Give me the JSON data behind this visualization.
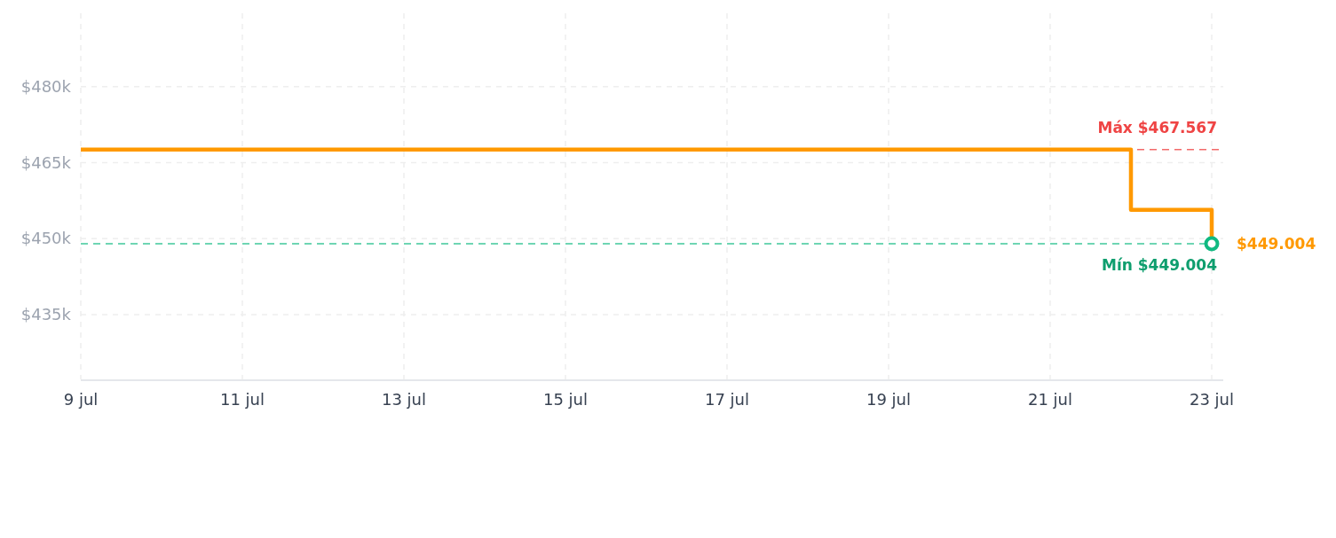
{
  "chart_data": {
    "type": "step",
    "x": [
      "--07-09",
      "--07-22",
      "--07-23"
    ],
    "series": [
      {
        "color": "#ff9900",
        "values": [
          467567,
          455700,
          449004
        ],
        "value_labels": [
          null,
          null,
          "$449.004"
        ]
      },
      {
        "type": "scatter",
        "x": [
          "--07-23"
        ],
        "values": [
          449004
        ],
        "color": "#10b981",
        "marker": "circle"
      }
    ],
    "xlim": [
      "--07-09",
      "--07-23"
    ],
    "xticks": [
      {
        "value": "--07-09",
        "label": "9 jul"
      },
      {
        "value": "--07-11",
        "label": "11 jul"
      },
      {
        "value": "--07-13",
        "label": "13 jul"
      },
      {
        "value": "--07-15",
        "label": "15 jul"
      },
      {
        "value": "--07-17",
        "label": "17 jul"
      },
      {
        "value": "--07-19",
        "label": "19 jul"
      },
      {
        "value": "--07-21",
        "label": "21 jul"
      },
      {
        "value": "--07-23",
        "label": "23 jul"
      }
    ],
    "ylim": [
      422200,
      494500
    ],
    "yticks": [
      {
        "value": 435000,
        "label": "$435k"
      },
      {
        "value": 450000,
        "label": "$450k"
      },
      {
        "value": 465000,
        "label": "$465k"
      },
      {
        "value": 480000,
        "label": "$480k"
      }
    ],
    "grid": true,
    "ref_lines": [
      {
        "axis": "y",
        "value": 467567,
        "label": "Máx $467.567",
        "color": "#ef4444",
        "line_style": "dashed"
      },
      {
        "axis": "y",
        "value": 449004,
        "label": "Mín $449.004",
        "color": "#10b981",
        "line_style": "dashed"
      }
    ]
  }
}
